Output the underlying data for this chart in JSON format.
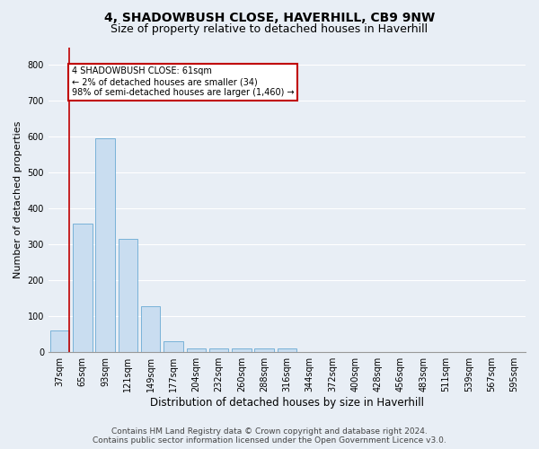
{
  "title": "4, SHADOWBUSH CLOSE, HAVERHILL, CB9 9NW",
  "subtitle": "Size of property relative to detached houses in Haverhill",
  "xlabel": "Distribution of detached houses by size in Haverhill",
  "ylabel": "Number of detached properties",
  "footer_line1": "Contains HM Land Registry data © Crown copyright and database right 2024.",
  "footer_line2": "Contains public sector information licensed under the Open Government Licence v3.0.",
  "categories": [
    "37sqm",
    "65sqm",
    "93sqm",
    "121sqm",
    "149sqm",
    "177sqm",
    "204sqm",
    "232sqm",
    "260sqm",
    "288sqm",
    "316sqm",
    "344sqm",
    "372sqm",
    "400sqm",
    "428sqm",
    "456sqm",
    "483sqm",
    "511sqm",
    "539sqm",
    "567sqm",
    "595sqm"
  ],
  "values": [
    60,
    358,
    595,
    315,
    128,
    30,
    10,
    10,
    10,
    10,
    10,
    0,
    0,
    0,
    0,
    0,
    0,
    0,
    0,
    0,
    0
  ],
  "bar_color": "#c9ddf0",
  "bar_edge_color": "#6aaad4",
  "highlight_line_color": "#c00000",
  "annotation_text": "4 SHADOWBUSH CLOSE: 61sqm\n← 2% of detached houses are smaller (34)\n98% of semi-detached houses are larger (1,460) →",
  "annotation_box_color": "#ffffff",
  "annotation_box_edge_color": "#c00000",
  "ylim": [
    0,
    850
  ],
  "yticks": [
    0,
    100,
    200,
    300,
    400,
    500,
    600,
    700,
    800
  ],
  "bg_color": "#e8eef5",
  "plot_bg_color": "#e8eef5",
  "grid_color": "#ffffff",
  "title_fontsize": 10,
  "subtitle_fontsize": 9,
  "footer_fontsize": 6.5,
  "tick_fontsize": 7,
  "ylabel_fontsize": 8,
  "xlabel_fontsize": 8.5
}
